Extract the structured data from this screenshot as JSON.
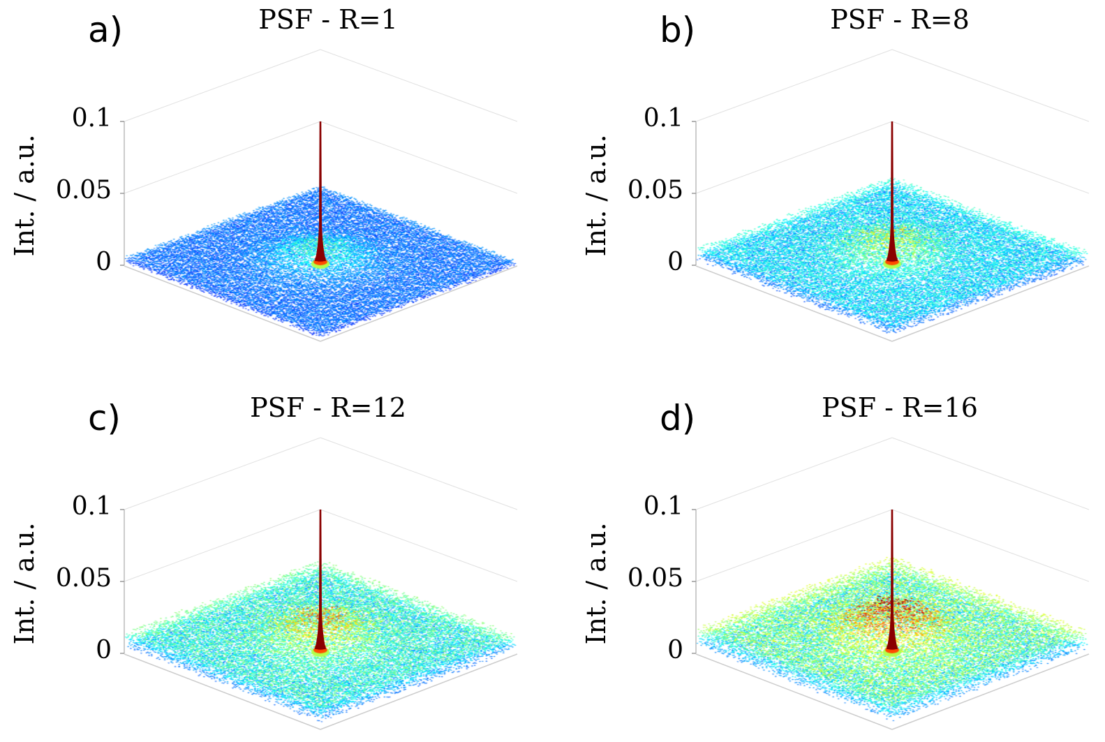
{
  "chart_data": {
    "type": "surface",
    "layout": "2x2 grid",
    "panels": [
      {
        "label": "a)",
        "title": "PSF - R=1",
        "zlabel": "Int. / a.u.",
        "zlim": [
          0,
          0.1
        ],
        "zticks": [
          "0",
          "0.05",
          "0.1"
        ],
        "peak_value": 0.1,
        "background_level": 0.004,
        "halo_level": 0.012
      },
      {
        "label": "b)",
        "title": "PSF - R=8",
        "zlabel": "Int. / a.u.",
        "zlim": [
          0,
          0.1
        ],
        "zticks": [
          "0",
          "0.05",
          "0.1"
        ],
        "peak_value": 0.1,
        "background_level": 0.008,
        "halo_level": 0.014
      },
      {
        "label": "c)",
        "title": "PSF - R=12",
        "zlabel": "Int. / a.u.",
        "zlim": [
          0,
          0.1
        ],
        "zticks": [
          "0",
          "0.05",
          "0.1"
        ],
        "peak_value": 0.1,
        "background_level": 0.01,
        "halo_level": 0.018
      },
      {
        "label": "d)",
        "title": "PSF - R=16",
        "zlabel": "Int. / a.u.",
        "zlim": [
          0,
          0.1
        ],
        "zticks": [
          "0",
          "0.05",
          "0.1"
        ],
        "peak_value": 0.1,
        "background_level": 0.012,
        "halo_level": 0.024
      }
    ],
    "colormap": "jet",
    "grid": true
  }
}
